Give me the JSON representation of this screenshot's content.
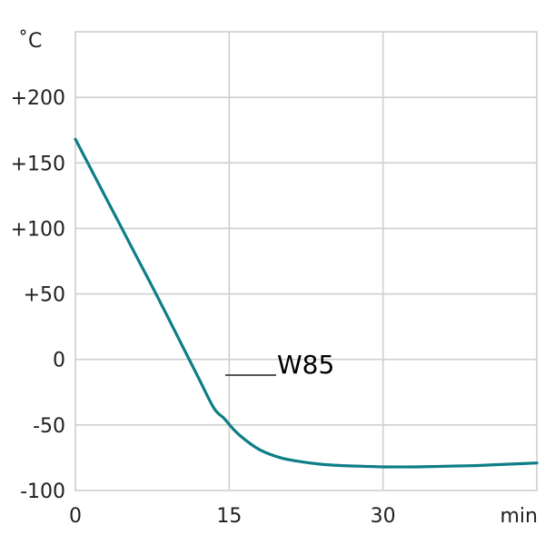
{
  "chart_data": {
    "type": "line",
    "title": "",
    "ylabel": "˚C",
    "xlabel": "min",
    "xlim": [
      0,
      45
    ],
    "ylim": [
      -100,
      250
    ],
    "grid": true,
    "x_ticks": [
      {
        "value": 0,
        "label": "0"
      },
      {
        "value": 15,
        "label": "15"
      },
      {
        "value": 30,
        "label": "30"
      }
    ],
    "y_ticks": [
      {
        "value": 200,
        "label": "+200"
      },
      {
        "value": 150,
        "label": "+150"
      },
      {
        "value": 100,
        "label": "+100"
      },
      {
        "value": 50,
        "label": "+50"
      },
      {
        "value": 0,
        "label": "0"
      },
      {
        "value": -50,
        "label": "-50"
      },
      {
        "value": -100,
        "label": "-100"
      }
    ],
    "colors": {
      "line": "#0e7e86",
      "grid": "#cfcfcf",
      "text": "#231f20"
    },
    "series": [
      {
        "name": "W85",
        "x": [
          0,
          2,
          4,
          6,
          8,
          10,
          12,
          13.5,
          14.5,
          15.5,
          16.5,
          18,
          20,
          22,
          24,
          26,
          28,
          30,
          33,
          36,
          39,
          42,
          45
        ],
        "y": [
          168,
          138,
          108,
          78,
          48,
          17,
          -14,
          -37,
          -45,
          -54,
          -61,
          -69,
          -75,
          -78,
          -80,
          -81,
          -81.5,
          -82,
          -82,
          -81.5,
          -81,
          -80,
          -79
        ]
      }
    ]
  }
}
